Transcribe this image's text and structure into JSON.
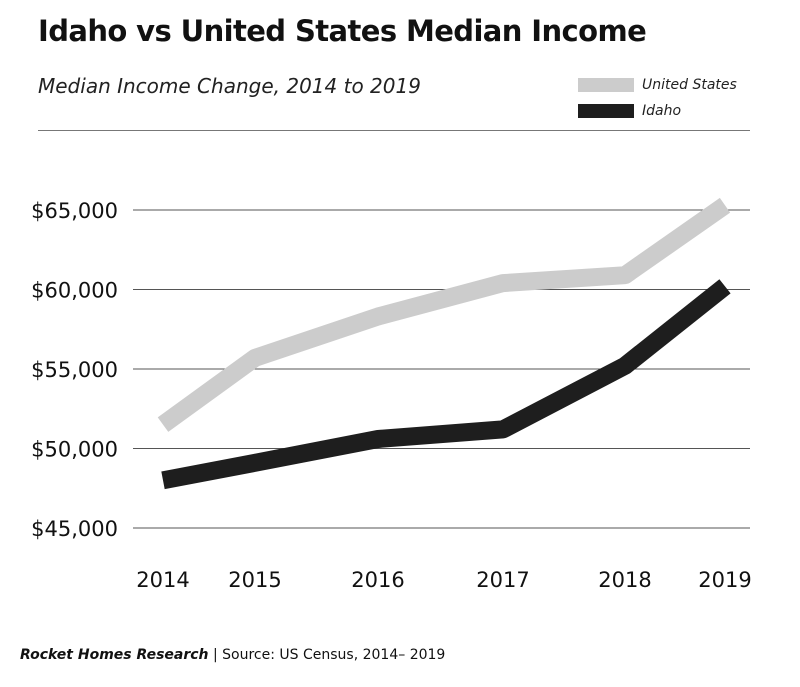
{
  "title": "Idaho vs United States Median Income",
  "subtitle": "Median Income Change,  2014 to 2019",
  "footer": {
    "brand": "Rocket Homes Research",
    "separator": " | ",
    "source": "Source: US Census, 2014– 2019"
  },
  "colors": {
    "united_states": "#cccccc",
    "idaho": "#1e1e1e",
    "grid": "#555555"
  },
  "chart_data": {
    "type": "line",
    "title": "Idaho vs United States Median Income",
    "subtitle": "Median Income Change,  2014 to 2019",
    "categories": [
      "2014",
      "2015",
      "2016",
      "2017",
      "2018",
      "2019"
    ],
    "series": [
      {
        "name": "United States",
        "values": [
          51500,
          55700,
          58300,
          60400,
          60900,
          65300
        ]
      },
      {
        "name": "Idaho",
        "values": [
          48000,
          49100,
          50600,
          51200,
          55200,
          60200
        ]
      }
    ],
    "ylim": [
      45000,
      65000
    ],
    "yticks": [
      65000,
      60000,
      55000,
      50000,
      45000
    ],
    "ytick_labels": [
      "$65,000",
      "$60,000",
      "$55,000",
      "$50,000",
      "$45,000"
    ],
    "xlabel": "",
    "ylabel": "",
    "grid": "horizontal",
    "legend": "top-right"
  }
}
